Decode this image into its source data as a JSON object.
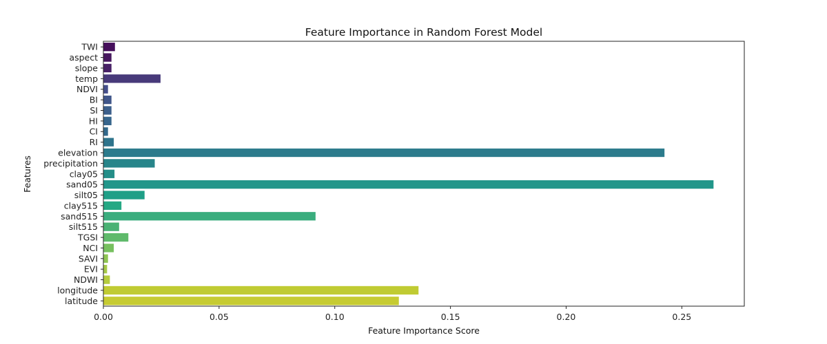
{
  "chart_data": {
    "type": "bar",
    "orientation": "horizontal",
    "title": "Feature Importance in Random Forest Model",
    "xlabel": "Feature Importance Score",
    "ylabel": "Features",
    "xlim": [
      0,
      0.277
    ],
    "xticks": [
      0.0,
      0.05,
      0.1,
      0.15,
      0.2,
      0.25
    ],
    "xtick_labels": [
      "0.00",
      "0.05",
      "0.10",
      "0.15",
      "0.20",
      "0.25"
    ],
    "grid": false,
    "palette": "viridis",
    "categories": [
      "TWI",
      "aspect",
      "slope",
      "temp",
      "NDVI",
      "BI",
      "SI",
      "HI",
      "CI",
      "RI",
      "elevation",
      "precipitation",
      "clay05",
      "sand05",
      "silt05",
      "clay515",
      "sand515",
      "silt515",
      "TGSI",
      "NCI",
      "SAVI",
      "EVI",
      "NDWI",
      "longitude",
      "latitude"
    ],
    "values": [
      0.005,
      0.0035,
      0.0035,
      0.0247,
      0.002,
      0.0035,
      0.0035,
      0.0035,
      0.002,
      0.0045,
      0.2425,
      0.0222,
      0.0048,
      0.2637,
      0.0178,
      0.0078,
      0.0917,
      0.0068,
      0.0108,
      0.0045,
      0.002,
      0.0016,
      0.0028,
      0.1362,
      0.1277
    ],
    "colors": [
      "#450e5b",
      "#47185f",
      "#482166",
      "#483a7a",
      "#454f8b",
      "#40568a",
      "#3c5f8b",
      "#37658c",
      "#33698b",
      "#2f748c",
      "#2c7b8c",
      "#27858a",
      "#248e88",
      "#22968a",
      "#1f9f87",
      "#25a884",
      "#3aad7e",
      "#4ab274",
      "#5fba6b",
      "#77c05f",
      "#8fc553",
      "#a6c948",
      "#b5cc3e",
      "#c0cb33",
      "#c6cb32"
    ]
  }
}
